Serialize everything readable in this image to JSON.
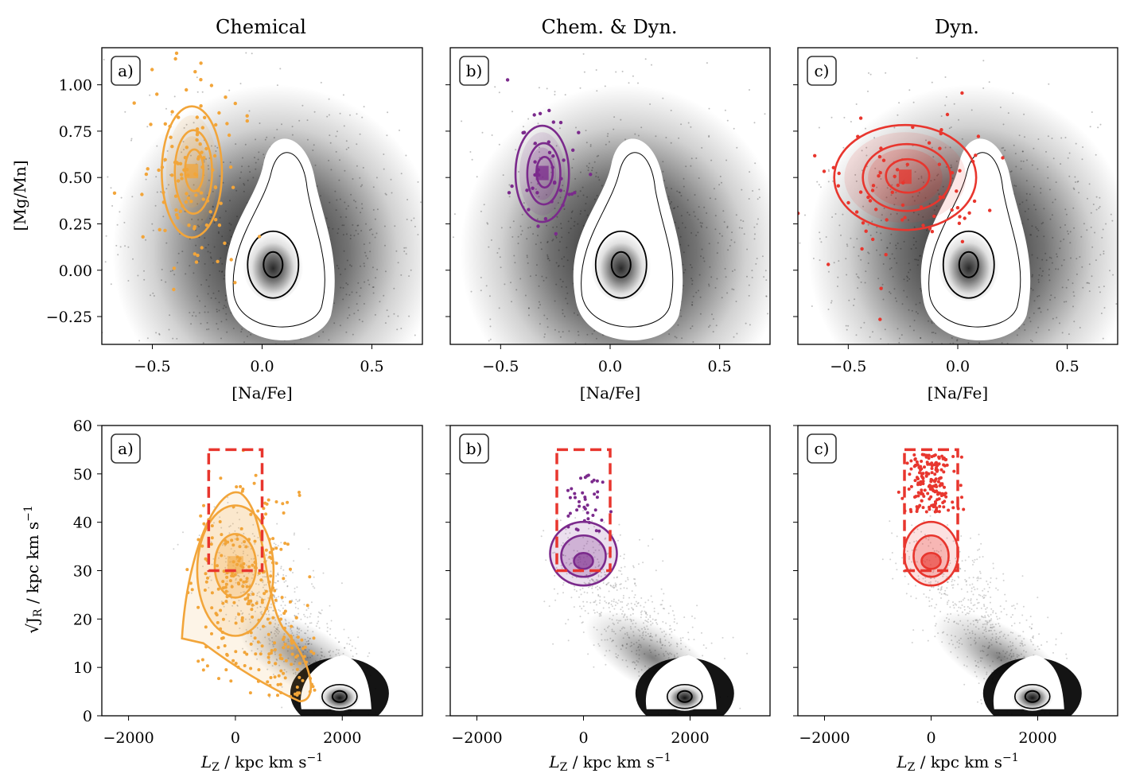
{
  "colors": {
    "chemical": "#f2a53a",
    "chem_dyn": "#7b2a8c",
    "dyn": "#e8362e",
    "background": "#000000",
    "selection_box": "#e8362e"
  },
  "column_titles": [
    "Chemical",
    "Chem. & Dyn.",
    "Dyn."
  ],
  "panel_tags": [
    "a)",
    "b)",
    "c)"
  ],
  "top_axes": {
    "xlabel": "[Na/Fe]",
    "ylabel": "[Mg/Mn]",
    "xticks": [
      "−0.5",
      "0.0",
      "0.5"
    ],
    "yticks": [
      "1.00",
      "0.75",
      "0.50",
      "0.25",
      "0.00",
      "−0.25"
    ]
  },
  "bottom_axes": {
    "xlabel": "L_Z / kpc km s^-1",
    "ylabel": "sqrt(J_R) / kpc km s^-1",
    "xticks": [
      "−2000",
      "0",
      "2000"
    ],
    "yticks": [
      "60",
      "50",
      "40",
      "30",
      "20",
      "10",
      "0"
    ]
  },
  "chart_data": [
    {
      "type": "scatter",
      "panel": "a",
      "row": "top",
      "title": "Chemical",
      "xlabel": "[Na/Fe]",
      "ylabel": "[Mg/Mn]",
      "xlim": [
        -0.73,
        0.73
      ],
      "ylim": [
        -0.4,
        1.2
      ],
      "series": [
        {
          "role": "all stars",
          "color": "#000000",
          "center": [
            0.05,
            0.03
          ]
        },
        {
          "role": "selected",
          "color": "#f2a53a",
          "center": [
            -0.32,
            0.53
          ]
        }
      ]
    },
    {
      "type": "scatter",
      "panel": "b",
      "row": "top",
      "title": "Chem. & Dyn.",
      "xlabel": "[Na/Fe]",
      "xlim": [
        -0.73,
        0.73
      ],
      "ylim": [
        -0.4,
        1.2
      ],
      "series": [
        {
          "role": "all stars",
          "color": "#000000",
          "center": [
            0.05,
            0.03
          ]
        },
        {
          "role": "selected",
          "color": "#7b2a8c",
          "center": [
            -0.31,
            0.52
          ]
        }
      ]
    },
    {
      "type": "scatter",
      "panel": "c",
      "row": "top",
      "title": "Dyn.",
      "xlabel": "[Na/Fe]",
      "xlim": [
        -0.73,
        0.73
      ],
      "ylim": [
        -0.4,
        1.2
      ],
      "series": [
        {
          "role": "all stars",
          "color": "#000000",
          "center": [
            0.05,
            0.03
          ]
        },
        {
          "role": "selected",
          "color": "#e8362e",
          "center": [
            -0.24,
            0.5
          ]
        }
      ]
    },
    {
      "type": "scatter",
      "panel": "a",
      "row": "bottom",
      "xlabel": "L_Z / kpc km s^-1",
      "ylabel": "sqrt(J_R) / kpc km s^-1",
      "xlim": [
        -2500,
        3500
      ],
      "ylim": [
        0,
        60
      ],
      "selection_box": {
        "x": [
          -500,
          500
        ],
        "y": [
          30,
          55
        ]
      },
      "series": [
        {
          "role": "all stars",
          "color": "#000000",
          "center": [
            1950,
            3
          ]
        },
        {
          "role": "selected",
          "color": "#f2a53a",
          "center": [
            0,
            31
          ]
        }
      ]
    },
    {
      "type": "scatter",
      "panel": "b",
      "row": "bottom",
      "xlabel": "L_Z / kpc km s^-1",
      "xlim": [
        -2500,
        3500
      ],
      "ylim": [
        0,
        60
      ],
      "selection_box": {
        "x": [
          -500,
          500
        ],
        "y": [
          30,
          55
        ]
      },
      "series": [
        {
          "role": "all stars",
          "color": "#000000",
          "center": [
            1900,
            3
          ]
        },
        {
          "role": "selected",
          "color": "#7b2a8c",
          "center": [
            0,
            32
          ]
        }
      ]
    },
    {
      "type": "scatter",
      "panel": "c",
      "row": "bottom",
      "xlabel": "L_Z / kpc km s^-1",
      "xlim": [
        -2500,
        3500
      ],
      "ylim": [
        0,
        60
      ],
      "selection_box": {
        "x": [
          -500,
          500
        ],
        "y": [
          30,
          55
        ]
      },
      "series": [
        {
          "role": "all stars",
          "color": "#000000",
          "center": [
            1900,
            3
          ]
        },
        {
          "role": "selected",
          "color": "#e8362e",
          "center": [
            0,
            32
          ]
        }
      ]
    }
  ]
}
